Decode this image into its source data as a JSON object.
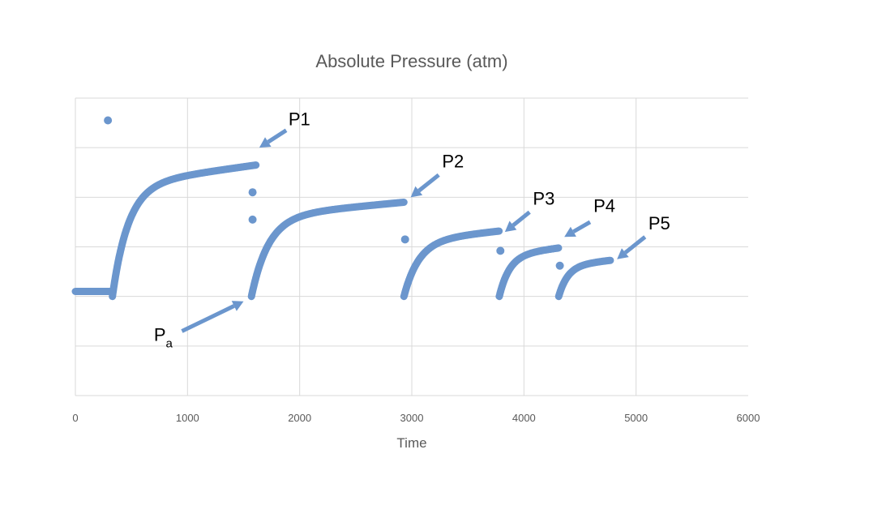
{
  "chart_data": {
    "type": "scatter",
    "title": "Absolute Pressure (atm)",
    "xlabel": "Time",
    "ylabel": "",
    "xlim": [
      0,
      6000
    ],
    "xticks": [
      0,
      1000,
      2000,
      3000,
      4000,
      5000,
      6000
    ],
    "xtick_labels": [
      "0",
      "1000",
      "2000",
      "3000",
      "4000",
      "5000",
      "6000"
    ],
    "ylim": [
      0,
      6
    ],
    "yticks": [
      0,
      1,
      2,
      3,
      4,
      5,
      6
    ],
    "ytick_labels_visible": false,
    "grid": true,
    "legend": "none",
    "color": "#6b96cd",
    "segments": [
      {
        "start": 0,
        "end": 330,
        "base": 2.1,
        "rise": 0,
        "k": 1
      },
      {
        "start": 330,
        "end": 1610,
        "base": 2.0,
        "rise": 2.65,
        "k": 140
      },
      {
        "start": 1570,
        "end": 2930,
        "base": 2.0,
        "rise": 1.9,
        "k": 150
      },
      {
        "start": 2930,
        "end": 3780,
        "base": 2.0,
        "rise": 1.32,
        "k": 130
      },
      {
        "start": 3780,
        "end": 4310,
        "base": 2.0,
        "rise": 0.98,
        "k": 90
      },
      {
        "start": 4310,
        "end": 4770,
        "base": 2.0,
        "rise": 0.73,
        "k": 80
      }
    ],
    "isolated_points": [
      {
        "x": 290,
        "y": 5.55
      },
      {
        "x": 1580,
        "y": 4.1
      },
      {
        "x": 1580,
        "y": 3.55
      },
      {
        "x": 2940,
        "y": 3.15
      },
      {
        "x": 3790,
        "y": 2.92
      },
      {
        "x": 4320,
        "y": 2.62
      }
    ],
    "annotations": [
      {
        "label": "P1",
        "sub": "",
        "tip": [
          1640,
          5.0
        ],
        "tail": [
          1880,
          5.35
        ],
        "text_at": [
          1900,
          5.45
        ],
        "anchor": "start"
      },
      {
        "label": "P2",
        "sub": "",
        "tip": [
          2990,
          4.0
        ],
        "tail": [
          3240,
          4.45
        ],
        "text_at": [
          3270,
          4.6
        ],
        "anchor": "start"
      },
      {
        "label": "P3",
        "sub": "",
        "tip": [
          3830,
          3.3
        ],
        "tail": [
          4050,
          3.7
        ],
        "text_at": [
          4080,
          3.85
        ],
        "anchor": "start"
      },
      {
        "label": "P4",
        "sub": "",
        "tip": [
          4360,
          3.2
        ],
        "tail": [
          4590,
          3.5
        ],
        "text_at": [
          4620,
          3.7
        ],
        "anchor": "start"
      },
      {
        "label": "P5",
        "sub": "",
        "tip": [
          4830,
          2.75
        ],
        "tail": [
          5080,
          3.2
        ],
        "text_at": [
          5110,
          3.35
        ],
        "anchor": "start"
      },
      {
        "label": "P",
        "sub": "a",
        "tip": [
          1500,
          1.9
        ],
        "tail": [
          950,
          1.3
        ],
        "text_at": [
          700,
          1.1
        ],
        "anchor": "start"
      }
    ]
  }
}
